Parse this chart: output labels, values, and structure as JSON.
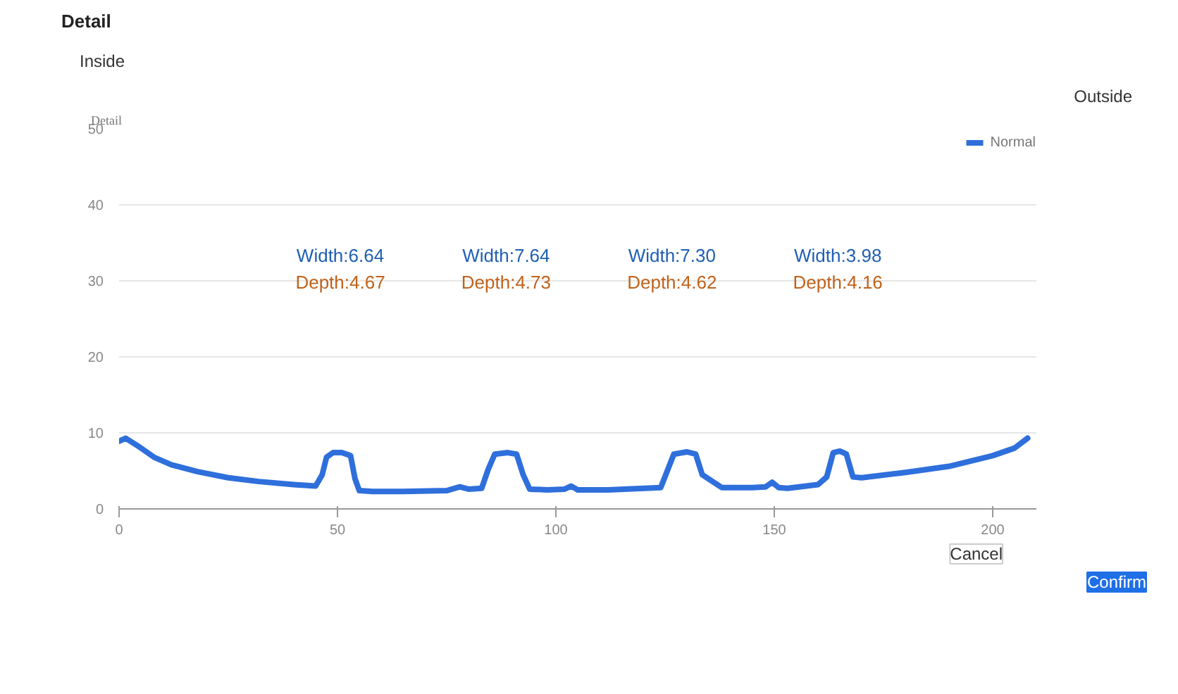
{
  "chart_data": {
    "type": "line",
    "title": "Detail",
    "ylabel": "Detail",
    "annotations": [
      "Inside",
      "Outside",
      "Width:6.64",
      "Depth:4.67",
      "Width:7.64",
      "Depth:4.73",
      "Width:7.30",
      "Depth:4.62",
      "Width:3.98",
      "Depth:4.16",
      "Cancel",
      "Confirm"
    ],
    "series": [
      {
        "name": "Normal",
        "color": "#2f6fdc",
        "x": [
          0,
          1.5,
          4,
          8,
          12,
          18,
          25,
          32,
          40,
          45,
          46.5,
          47.5,
          49,
          51,
          53,
          54,
          55,
          58,
          65,
          75,
          78,
          80,
          83,
          84.5,
          86,
          89,
          91,
          92.5,
          94,
          98,
          102,
          103.5,
          105,
          112,
          124,
          125.5,
          127,
          130,
          132,
          133.5,
          138,
          145,
          148,
          149.5,
          151,
          153,
          160,
          162,
          163.5,
          165,
          166.5,
          168,
          170,
          180,
          190,
          200,
          205,
          208
        ],
        "values": [
          8.9,
          9.3,
          8.4,
          6.8,
          5.8,
          4.9,
          4.1,
          3.6,
          3.2,
          3.0,
          4.5,
          6.8,
          7.4,
          7.4,
          7.0,
          4,
          2.4,
          2.3,
          2.3,
          2.4,
          2.9,
          2.6,
          2.7,
          5.2,
          7.2,
          7.4,
          7.2,
          4.5,
          2.6,
          2.5,
          2.6,
          3.0,
          2.5,
          2.5,
          2.8,
          5,
          7.2,
          7.5,
          7.2,
          4.5,
          2.8,
          2.8,
          2.9,
          3.5,
          2.8,
          2.7,
          3.2,
          4.2,
          7.4,
          7.6,
          7.2,
          4.2,
          4.1,
          4.8,
          5.6,
          7.0,
          8.0,
          9.3
        ]
      }
    ],
    "xlim": [
      0,
      210
    ],
    "ylim": [
      0,
      50
    ],
    "xticks": [
      0,
      50,
      100,
      150,
      200
    ],
    "yticks": [
      0,
      10,
      20,
      30,
      40,
      50
    ],
    "grid": "y",
    "legend": "top right",
    "marker": "none",
    "line_style": "solid"
  }
}
